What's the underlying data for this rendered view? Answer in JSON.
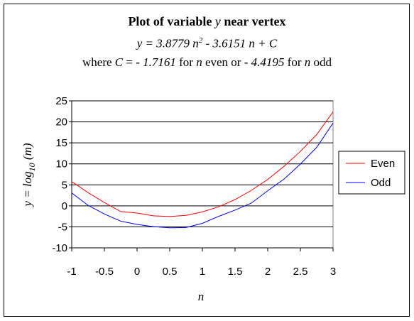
{
  "titles": {
    "line1_pre": "Plot of variable ",
    "line1_var": "y",
    "line1_post": " near vertex",
    "line2_a": "y = 3.8779 n",
    "line2_exp": "2",
    "line2_b": " - 3.6151 n + C",
    "line3_where": "where ",
    "line3_C": "C",
    "line3_eq": " = ",
    "line3_v1": "- 1.7161",
    "line3_for1": " for ",
    "line3_n1": "n",
    "line3_even": " even or ",
    "line3_v2": "- 4.4195",
    "line3_for2": " for ",
    "line3_n2": "n",
    "line3_odd": " odd"
  },
  "chart_data": {
    "type": "line",
    "title": "Plot of variable y near vertex",
    "xlabel": "n",
    "ylabel": "y = log 10 (m)",
    "xlim": [
      -1,
      3
    ],
    "ylim": [
      -10,
      25
    ],
    "xticks": [
      "-1",
      "-0.5",
      "0",
      "0.5",
      "1",
      "1.5",
      "2",
      "2.5",
      "3"
    ],
    "yticks": [
      "25",
      "20",
      "15",
      "10",
      "5",
      "0",
      "-5",
      "-10"
    ],
    "grid": "horizontal",
    "legend_position": "right",
    "x": [
      -1,
      -0.75,
      -0.5,
      -0.25,
      0,
      0.25,
      0.5,
      0.75,
      1,
      1.25,
      1.5,
      1.75,
      2,
      2.25,
      2.5,
      2.75,
      3
    ],
    "series": [
      {
        "name": "Even",
        "color": "#ff0000",
        "values": [
          5.77,
          3.16,
          0.78,
          -1.36,
          -1.72,
          -2.37,
          -2.55,
          -2.25,
          -1.45,
          -0.22,
          1.5,
          3.69,
          6.28,
          9.41,
          12.96,
          16.98,
          22.36
        ]
      },
      {
        "name": "Odd",
        "color": "#0000ff",
        "values": [
          3.07,
          0.13,
          -1.93,
          -3.65,
          -4.42,
          -4.94,
          -5.24,
          -5.17,
          -4.16,
          -2.5,
          -1.0,
          0.66,
          3.6,
          6.38,
          9.93,
          13.95,
          19.7
        ]
      }
    ]
  }
}
